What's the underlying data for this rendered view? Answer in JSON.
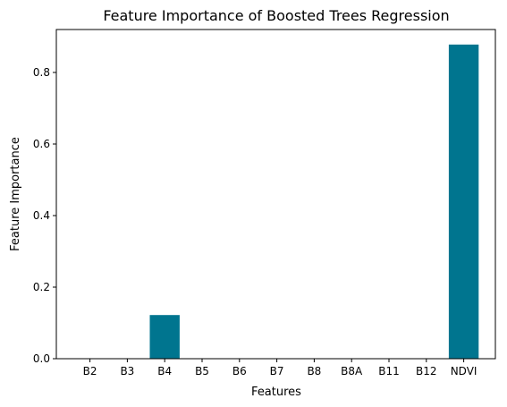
{
  "chart_data": {
    "type": "bar",
    "title": "Feature Importance of Boosted Trees Regression",
    "xlabel": "Features",
    "ylabel": "Feature Importance",
    "categories": [
      "B2",
      "B3",
      "B4",
      "B5",
      "B6",
      "B7",
      "B8",
      "B8A",
      "B11",
      "B12",
      "NDVI"
    ],
    "values": [
      0.0,
      0.0,
      0.122,
      0.0,
      0.0,
      0.0,
      0.0,
      0.0,
      0.0,
      0.0,
      0.878
    ],
    "ylim": [
      0,
      0.92
    ],
    "yticks": [
      0.0,
      0.2,
      0.4,
      0.6,
      0.8
    ],
    "ytick_labels": [
      "0.0",
      "0.2",
      "0.4",
      "0.6",
      "0.8"
    ],
    "bar_color": "#00758f",
    "grid": false,
    "legend": "none"
  }
}
